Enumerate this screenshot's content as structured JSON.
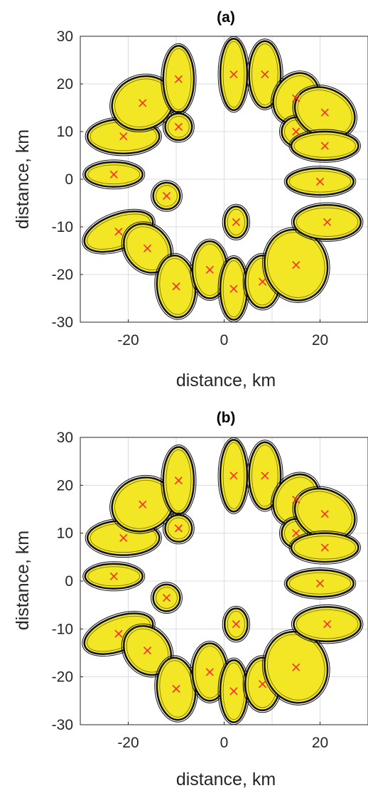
{
  "chart_data": [
    {
      "type": "scatter",
      "title": "(a)",
      "xlabel": "distance, km",
      "ylabel": "distance, km",
      "xlim": [
        -30,
        30
      ],
      "ylim": [
        -30,
        30
      ],
      "xticks": [
        -20,
        0,
        20
      ],
      "yticks": [
        30,
        20,
        10,
        0,
        -10,
        -20,
        -30
      ],
      "grid": true,
      "colors": {
        "fill": "#f2e625",
        "outline": "#111111",
        "marker": "#ff2a2a",
        "contour_blue": "#2b2b8c"
      },
      "series": [
        {
          "marker": "x",
          "points": [
            [
              -23,
              1
            ],
            [
              -21,
              9
            ],
            [
              -17,
              16
            ],
            [
              -12,
              -3.5
            ],
            [
              -9.5,
              21
            ],
            [
              -9.5,
              11
            ],
            [
              -22,
              -11
            ],
            [
              -16,
              -14.5
            ],
            [
              -10,
              -22.5
            ],
            [
              -3,
              -19
            ],
            [
              2,
              -23
            ],
            [
              2.5,
              -9
            ],
            [
              8,
              -21.5
            ],
            [
              15,
              -18
            ],
            [
              2,
              22
            ],
            [
              8.5,
              22
            ],
            [
              15,
              17
            ],
            [
              15,
              10
            ],
            [
              21,
              14
            ],
            [
              21,
              7
            ],
            [
              20,
              -0.5
            ],
            [
              21.5,
              -9
            ]
          ]
        }
      ]
    },
    {
      "type": "scatter",
      "title": "(b)",
      "xlabel": "distance, km",
      "ylabel": "distance, km",
      "xlim": [
        -30,
        30
      ],
      "ylim": [
        -30,
        30
      ],
      "xticks": [
        -20,
        0,
        20
      ],
      "yticks": [
        30,
        20,
        10,
        0,
        -10,
        -20,
        -30
      ],
      "grid": true,
      "colors": {
        "fill": "#f2e625",
        "outline": "#111111",
        "marker": "#ff2a2a",
        "contour_blue": "#2b2b8c"
      },
      "series": [
        {
          "marker": "x",
          "points": [
            [
              -23,
              1
            ],
            [
              -21,
              9
            ],
            [
              -17,
              16
            ],
            [
              -12,
              -3.5
            ],
            [
              -9.5,
              21
            ],
            [
              -9.5,
              11
            ],
            [
              -22,
              -11
            ],
            [
              -16,
              -14.5
            ],
            [
              -10,
              -22.5
            ],
            [
              -3,
              -19
            ],
            [
              2,
              -23
            ],
            [
              2.5,
              -9
            ],
            [
              8,
              -21.5
            ],
            [
              15,
              -18
            ],
            [
              2,
              22
            ],
            [
              8.5,
              22
            ],
            [
              15,
              17
            ],
            [
              15,
              10
            ],
            [
              21,
              14
            ],
            [
              21,
              7
            ],
            [
              20,
              -0.5
            ],
            [
              21.5,
              -9
            ]
          ]
        }
      ]
    }
  ]
}
